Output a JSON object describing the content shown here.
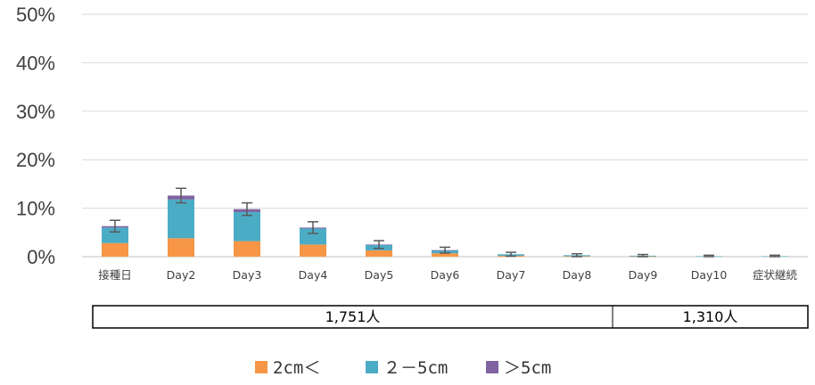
{
  "chart_data": {
    "type": "bar",
    "stacked": true,
    "categories": [
      "接種日",
      "Day2",
      "Day3",
      "Day4",
      "Day5",
      "Day6",
      "Day7",
      "Day8",
      "Day9",
      "Day10",
      "症状継続"
    ],
    "series": [
      {
        "name": "2cm＜",
        "color": "#F79646",
        "values": [
          2.8,
          3.8,
          3.2,
          2.5,
          1.3,
          0.7,
          0.2,
          0.1,
          0.05,
          0.0,
          0.0
        ]
      },
      {
        "name": "２－5cm",
        "color": "#4BACC6",
        "values": [
          3.2,
          8.0,
          6.0,
          3.3,
          1.1,
          0.6,
          0.3,
          0.2,
          0.15,
          0.1,
          0.1
        ]
      },
      {
        "name": "＞5cm",
        "color": "#8064A2",
        "values": [
          0.3,
          0.8,
          0.6,
          0.2,
          0.1,
          0.05,
          0.0,
          0.0,
          0.0,
          0.0,
          0.0
        ]
      }
    ],
    "error_bars": [
      1.2,
      1.5,
      1.3,
      1.2,
      0.8,
      0.6,
      0.4,
      0.3,
      0.25,
      0.2,
      0.2
    ],
    "yticks": [
      "0%",
      "10%",
      "20%",
      "30%",
      "40%",
      "50%"
    ],
    "ylim": [
      0,
      50
    ],
    "grid": true,
    "legend_position": "bottom"
  },
  "sample_sizes": [
    {
      "label": "1,751人",
      "span": [
        0,
        9
      ]
    },
    {
      "label": "1,310人",
      "span": [
        10,
        10
      ]
    }
  ]
}
